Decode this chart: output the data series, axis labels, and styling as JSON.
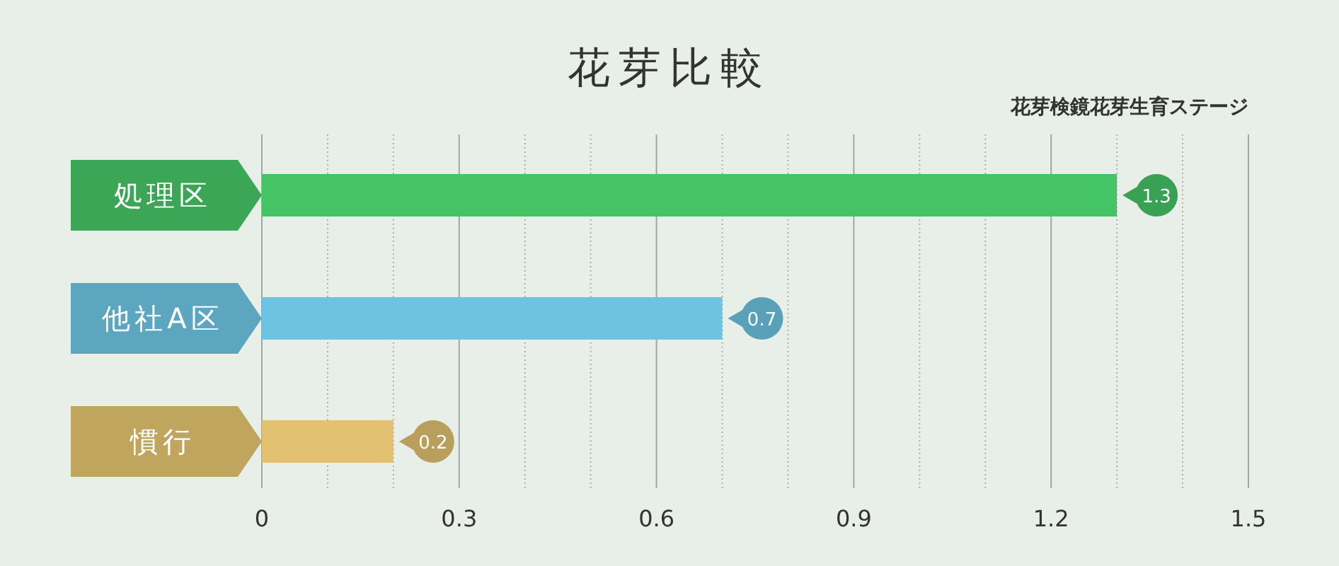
{
  "chart_data": {
    "type": "bar",
    "orientation": "horizontal",
    "title": "花芽比較",
    "subtitle": "花芽検鏡花芽生育ステージ",
    "categories": [
      "処理区",
      "他社A区",
      "慣行"
    ],
    "values": [
      1.3,
      0.7,
      0.2
    ],
    "colors": [
      "#45c465",
      "#6cc3e2",
      "#e2c270"
    ],
    "xlim": [
      0,
      1.5
    ],
    "xticks": [
      0,
      {
        "value": 0.1,
        "label": null
      },
      {
        "value": 0.2,
        "label": null
      },
      0.3,
      {
        "value": 0.4,
        "label": null
      },
      {
        "value": 0.5,
        "label": null
      },
      0.6,
      {
        "value": 0.7,
        "label": null
      },
      {
        "value": 0.8,
        "label": null
      },
      0.9,
      {
        "value": 1.0,
        "label": null
      },
      {
        "value": 1.1,
        "label": null
      },
      1.2,
      {
        "value": 1.3,
        "label": null
      },
      {
        "value": 1.4,
        "label": null
      },
      1.5
    ],
    "grid": "x",
    "data_labels": true
  }
}
